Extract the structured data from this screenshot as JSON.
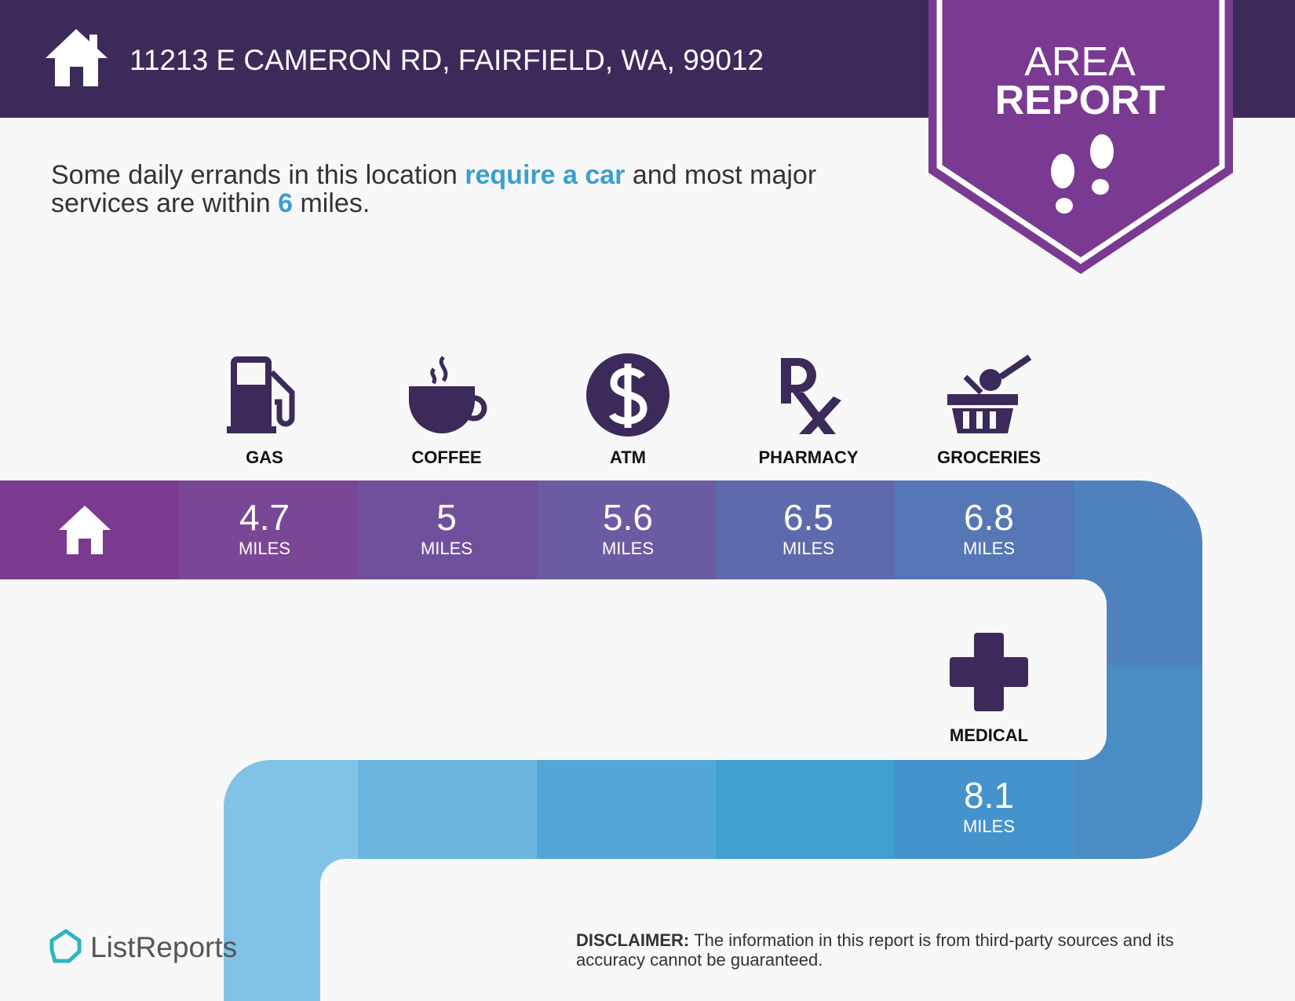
{
  "header": {
    "address": "11213 E CAMERON RD, FAIRFIELD, WA, 99012"
  },
  "badge": {
    "line1": "AREA",
    "line2": "REPORT"
  },
  "summary": {
    "lines": [
      [
        "Some daily errands in this location ",
        "require a car",
        " and most major"
      ],
      [
        "services are within ",
        "6",
        " miles."
      ]
    ]
  },
  "services": [
    {
      "label": "GAS",
      "distance": 4.7,
      "unit": "MILES"
    },
    {
      "label": "COFFEE",
      "distance": 5,
      "unit": "MILES"
    },
    {
      "label": "ATM",
      "distance": 5.6,
      "unit": "MILES"
    },
    {
      "label": "PHARMACY",
      "distance": 6.5,
      "unit": "MILES"
    },
    {
      "label": "GROCERIES",
      "distance": 6.8,
      "unit": "MILES"
    },
    {
      "label": "MEDICAL",
      "distance": 8.1,
      "unit": "MILES"
    }
  ],
  "footer": {
    "brand": "ListReports",
    "disclaimer_label": "DISCLAIMER:",
    "disclaimer_lines": [
      "The information in this report is from third-party sources and its",
      "accuracy cannot be guaranteed."
    ]
  }
}
